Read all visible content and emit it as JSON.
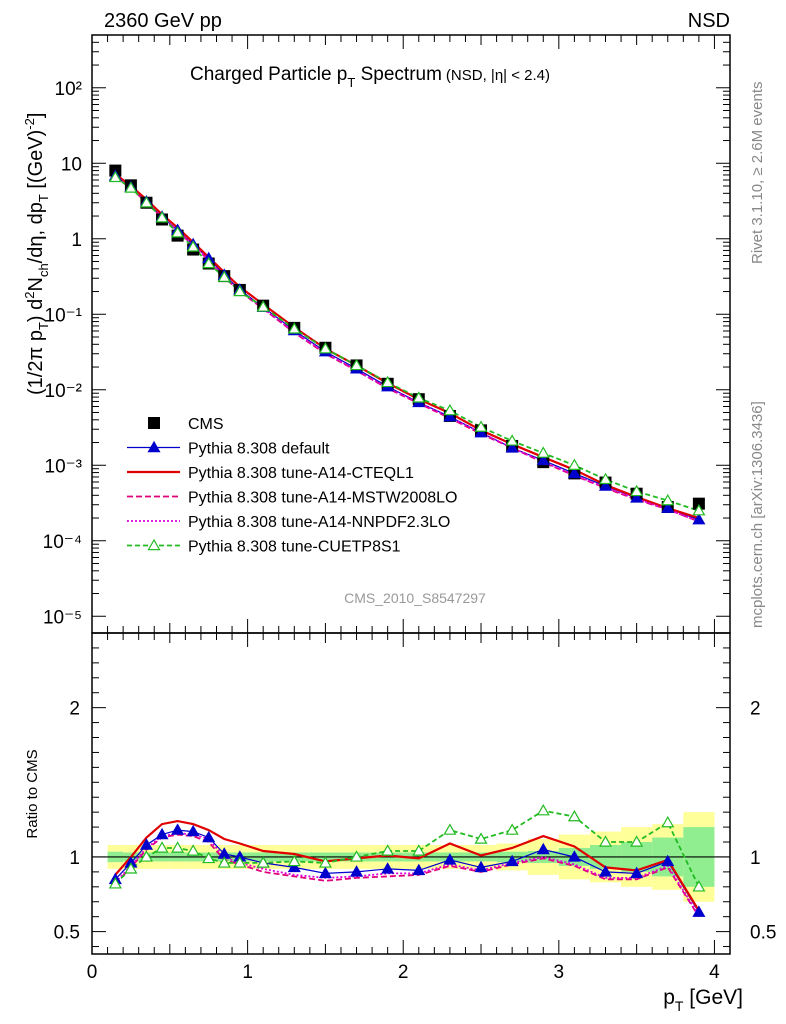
{
  "header": {
    "left_label": "2360 GeV pp",
    "right_label": "NSD"
  },
  "side_labels": {
    "rivet": "Rivet 3.1.10, ≥ 2.6M events",
    "mcplots": "mcplots.cern.ch [arXiv:1306.3436]"
  },
  "analysis_id": "CMS_2010_S8547297",
  "colors": {
    "cms": "#000000",
    "default": "#0000cc",
    "cteql1": "#e00000",
    "mstw": "#e0007a",
    "nnpdf": "#dd00dd",
    "cuetp8s1": "#22bb22",
    "band_inner": "#90ee90",
    "band_outer": "#ffff99"
  },
  "chart_data": [
    {
      "type": "scatter",
      "title": "Charged Particle p",
      "title_sub": "T",
      "title_tail": " Spectrum",
      "title_note": "(NSD, |η| < 2.4)",
      "ylabel": "(1/2π p_T) d²N_ch/dη, dp_T [(GeV)⁻²]",
      "yscale": "log",
      "ylim": [
        6e-06,
        500
      ],
      "xlim": [
        0,
        4.1
      ],
      "ytick_labels": [
        "10⁻⁵",
        "10⁻⁴",
        "10⁻³",
        "10⁻²",
        "10⁻¹",
        "1",
        "10",
        "10²"
      ],
      "legend_position": "bottom-left",
      "x": [
        0.15,
        0.25,
        0.35,
        0.45,
        0.55,
        0.65,
        0.75,
        0.85,
        0.95,
        1.1,
        1.3,
        1.5,
        1.7,
        1.9,
        2.1,
        2.3,
        2.5,
        2.7,
        2.9,
        3.1,
        3.3,
        3.5,
        3.7,
        3.9
      ],
      "series": [
        {
          "name": "CMS",
          "key": "cms",
          "marker": "square",
          "values": [
            8.0,
            5.1,
            3.0,
            1.8,
            1.1,
            0.72,
            0.47,
            0.32,
            0.21,
            0.13,
            0.066,
            0.036,
            0.021,
            0.012,
            0.0075,
            0.0045,
            0.0029,
            0.0018,
            0.0011,
            0.00078,
            0.00059,
            0.00042,
            0.00028,
            0.00031
          ]
        },
        {
          "name": "Pythia 8.308 default",
          "key": "default",
          "marker": "triangle",
          "dash": "",
          "values": [
            6.8,
            4.8,
            3.1,
            1.95,
            1.3,
            0.84,
            0.55,
            0.33,
            0.21,
            0.124,
            0.061,
            0.032,
            0.019,
            0.011,
            0.0068,
            0.0044,
            0.0027,
            0.0017,
            0.00116,
            0.00078,
            0.00053,
            0.00037,
            0.00027,
            0.00019
          ]
        },
        {
          "name": "Pythia 8.308 tune-A14-CTEQL1",
          "key": "cteql1",
          "marker": "none",
          "dash": "",
          "values": [
            7.2,
            5.0,
            3.3,
            2.1,
            1.4,
            0.9,
            0.57,
            0.36,
            0.23,
            0.135,
            0.067,
            0.035,
            0.021,
            0.0122,
            0.0075,
            0.0049,
            0.0029,
            0.0019,
            0.00128,
            0.00087,
            0.00055,
            0.00038,
            0.00027,
            0.0002
          ]
        },
        {
          "name": "Pythia 8.308 tune-A14-MSTW2008LO",
          "key": "mstw",
          "marker": "none",
          "dash": "6,3",
          "values": [
            6.6,
            4.7,
            3.0,
            1.9,
            1.25,
            0.82,
            0.52,
            0.31,
            0.2,
            0.118,
            0.057,
            0.03,
            0.0179,
            0.0104,
            0.0066,
            0.0042,
            0.0026,
            0.0017,
            0.00109,
            0.00073,
            0.0005,
            0.00035,
            0.00026,
            0.00018
          ]
        },
        {
          "name": "Pythia 8.308 tune-A14-NNPDF2.3LO",
          "key": "nnpdf",
          "marker": "none",
          "dash": "2,2",
          "values": [
            6.7,
            4.75,
            3.05,
            1.93,
            1.27,
            0.83,
            0.53,
            0.315,
            0.202,
            0.12,
            0.058,
            0.031,
            0.018,
            0.0106,
            0.0067,
            0.0043,
            0.0027,
            0.0017,
            0.00111,
            0.00074,
            0.00051,
            0.00036,
            0.00026,
            0.00018
          ]
        },
        {
          "name": "Pythia 8.308 tune-CUETP8S1",
          "key": "cuetp8s1",
          "marker": "open-triangle",
          "dash": "5,3",
          "values": [
            6.5,
            4.7,
            3.0,
            1.9,
            1.2,
            0.78,
            0.47,
            0.31,
            0.2,
            0.125,
            0.064,
            0.035,
            0.021,
            0.0125,
            0.0078,
            0.0053,
            0.0032,
            0.0021,
            0.00145,
            0.001,
            0.00065,
            0.00045,
            0.00034,
            0.00025
          ]
        }
      ]
    },
    {
      "type": "line",
      "ylabel": "Ratio to CMS",
      "xlabel": "p_T [GeV]",
      "ylim": [
        0.35,
        2.5
      ],
      "xlim": [
        0,
        4.1
      ],
      "yticks": [
        0.5,
        1,
        2
      ],
      "ytick_labels": [
        "0.5",
        "1",
        "2"
      ],
      "xticks": [
        0,
        1,
        2,
        3,
        4
      ],
      "xtick_labels": [
        "0",
        "1",
        "2",
        "3",
        "4"
      ],
      "bands": {
        "edges": [
          0.1,
          0.2,
          0.3,
          0.4,
          0.5,
          0.6,
          0.7,
          0.8,
          0.9,
          1.0,
          1.2,
          1.4,
          1.6,
          1.8,
          2.0,
          2.2,
          2.4,
          2.6,
          2.8,
          3.0,
          3.2,
          3.4,
          3.6,
          3.8,
          4.0
        ],
        "inner": [
          0.035,
          0.03,
          0.03,
          0.03,
          0.03,
          0.03,
          0.03,
          0.03,
          0.03,
          0.03,
          0.03,
          0.03,
          0.03,
          0.03,
          0.03,
          0.03,
          0.03,
          0.035,
          0.04,
          0.06,
          0.08,
          0.1,
          0.13,
          0.2
        ],
        "outer": [
          0.08,
          0.08,
          0.08,
          0.08,
          0.08,
          0.08,
          0.08,
          0.08,
          0.08,
          0.08,
          0.08,
          0.08,
          0.08,
          0.08,
          0.08,
          0.08,
          0.08,
          0.09,
          0.12,
          0.15,
          0.17,
          0.2,
          0.22,
          0.3
        ]
      },
      "series": [
        {
          "name": "Pythia 8.308 default",
          "key": "default",
          "marker": "triangle",
          "dash": "",
          "values": [
            0.85,
            0.96,
            1.08,
            1.15,
            1.18,
            1.17,
            1.13,
            1.02,
            1.0,
            0.96,
            0.93,
            0.89,
            0.9,
            0.92,
            0.91,
            0.98,
            0.93,
            0.97,
            1.05,
            1.0,
            0.9,
            0.89,
            0.97,
            0.63
          ]
        },
        {
          "name": "Pythia 8.308 tune-A14-CTEQL1",
          "key": "cteql1",
          "marker": "none",
          "dash": "",
          "values": [
            0.88,
            1.0,
            1.13,
            1.22,
            1.24,
            1.22,
            1.18,
            1.12,
            1.09,
            1.04,
            1.02,
            0.97,
            0.99,
            1.01,
            0.99,
            1.09,
            1.01,
            1.06,
            1.14,
            1.07,
            0.93,
            0.91,
            0.98,
            0.64
          ]
        },
        {
          "name": "Pythia 8.308 tune-A14-MSTW2008LO",
          "key": "mstw",
          "marker": "none",
          "dash": "6,3",
          "values": [
            0.82,
            0.93,
            1.05,
            1.13,
            1.15,
            1.14,
            1.1,
            0.98,
            0.95,
            0.9,
            0.87,
            0.84,
            0.86,
            0.87,
            0.88,
            0.94,
            0.9,
            0.95,
            0.99,
            0.94,
            0.85,
            0.85,
            0.93,
            0.6
          ]
        },
        {
          "name": "Pythia 8.308 tune-A14-NNPDF2.3LO",
          "key": "nnpdf",
          "marker": "none",
          "dash": "2,2",
          "values": [
            0.83,
            0.94,
            1.06,
            1.14,
            1.16,
            1.15,
            1.12,
            1.0,
            0.96,
            0.92,
            0.88,
            0.86,
            0.87,
            0.89,
            0.89,
            0.95,
            0.91,
            0.96,
            1.0,
            0.95,
            0.86,
            0.86,
            0.94,
            0.61
          ]
        },
        {
          "name": "Pythia 8.308 tune-CUETP8S1",
          "key": "cuetp8s1",
          "marker": "open-triangle",
          "dash": "5,3",
          "values": [
            0.82,
            0.92,
            1.0,
            1.06,
            1.06,
            1.04,
            0.99,
            0.96,
            0.96,
            0.96,
            0.97,
            0.96,
            1.0,
            1.04,
            1.04,
            1.18,
            1.12,
            1.18,
            1.31,
            1.27,
            1.1,
            1.1,
            1.23,
            0.8
          ]
        }
      ]
    }
  ]
}
